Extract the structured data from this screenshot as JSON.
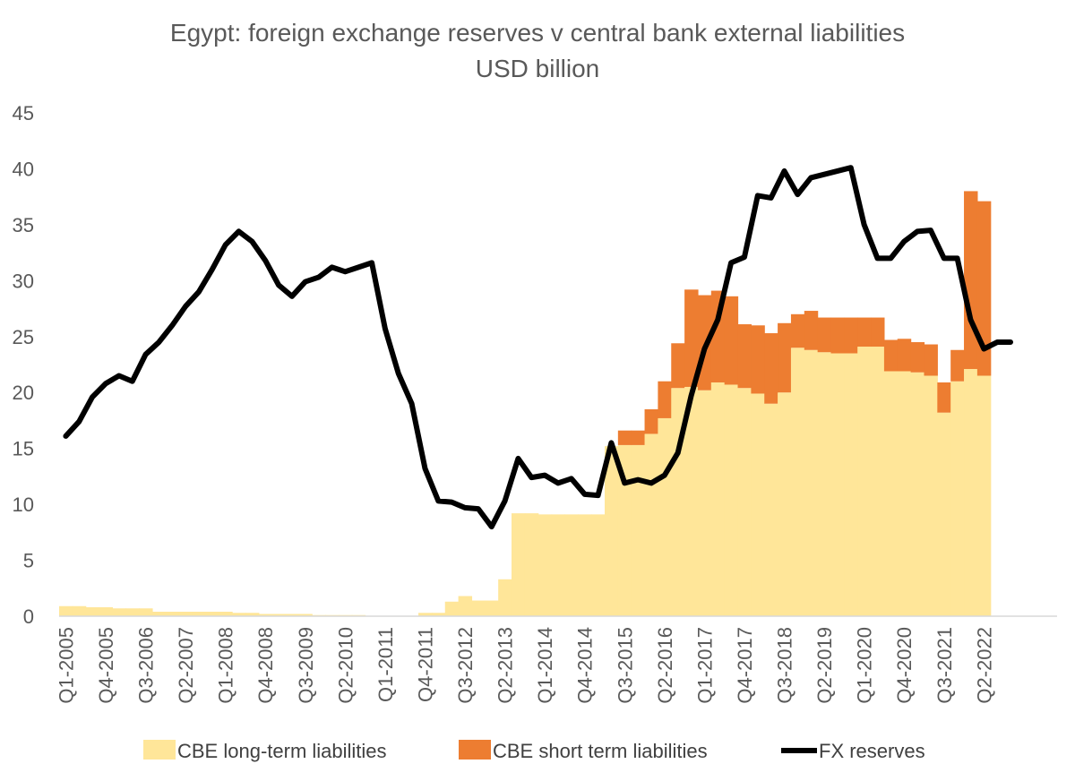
{
  "chart_data": {
    "type": "bar",
    "title": "Egypt: foreign exchange reserves v central bank external liabilities",
    "subtitle": "USD billion",
    "xlabel": "",
    "ylabel": "",
    "ylim": [
      0,
      45
    ],
    "yticks": [
      0,
      5,
      10,
      15,
      20,
      25,
      30,
      35,
      40,
      45
    ],
    "grid": false,
    "stacked": true,
    "legend_position": "bottom",
    "categories": [
      "Q1-2005",
      "Q2-2005",
      "Q3-2005",
      "Q4-2005",
      "Q1-2006",
      "Q2-2006",
      "Q3-2006",
      "Q4-2006",
      "Q1-2007",
      "Q2-2007",
      "Q3-2007",
      "Q4-2007",
      "Q1-2008",
      "Q2-2008",
      "Q3-2008",
      "Q4-2008",
      "Q1-2009",
      "Q2-2009",
      "Q3-2009",
      "Q4-2009",
      "Q1-2010",
      "Q2-2010",
      "Q3-2010",
      "Q4-2010",
      "Q1-2011",
      "Q2-2011",
      "Q3-2011",
      "Q4-2011",
      "Q1-2012",
      "Q2-2012",
      "Q3-2012",
      "Q4-2012",
      "Q1-2013",
      "Q2-2013",
      "Q3-2013",
      "Q4-2013",
      "Q1-2014",
      "Q2-2014",
      "Q3-2014",
      "Q4-2014",
      "Q1-2015",
      "Q2-2015",
      "Q3-2015",
      "Q4-2015",
      "Q1-2016",
      "Q2-2016",
      "Q3-2016",
      "Q4-2016",
      "Q1-2017",
      "Q2-2017",
      "Q3-2017",
      "Q4-2017",
      "Q1-2018",
      "Q2-2018",
      "Q3-2018",
      "Q4-2018",
      "Q1-2019",
      "Q2-2019",
      "Q3-2019",
      "Q4-2019",
      "Q1-2020",
      "Q2-2020",
      "Q3-2020",
      "Q4-2020",
      "Q1-2021",
      "Q2-2021",
      "Q3-2021",
      "Q4-2021",
      "Q1-2022",
      "Q2-2022",
      "Q3-2022",
      "Q4-2022",
      "Q1-2023",
      "Q2-2023",
      "Q3-2023"
    ],
    "tick_label_categories": [
      "Q1-2005",
      "Q4-2005",
      "Q3-2006",
      "Q2-2007",
      "Q1-2008",
      "Q4-2008",
      "Q3-2009",
      "Q2-2010",
      "Q1-2011",
      "Q4-2011",
      "Q3-2012",
      "Q2-2013",
      "Q1-2014",
      "Q4-2014",
      "Q3-2015",
      "Q2-2016",
      "Q1-2017",
      "Q4-2017",
      "Q3-2018",
      "Q2-2019",
      "Q1-2020",
      "Q4-2020",
      "Q3-2021",
      "Q2-2022"
    ],
    "series": [
      {
        "name": "CBE long-term liabilities",
        "kind": "bar",
        "color": "#FFE699",
        "values": [
          0.9,
          0.9,
          0.8,
          0.8,
          0.7,
          0.7,
          0.7,
          0.4,
          0.4,
          0.4,
          0.4,
          0.4,
          0.4,
          0.3,
          0.3,
          0.2,
          0.2,
          0.2,
          0.2,
          0.1,
          0.1,
          0.1,
          0.1,
          0,
          0,
          0,
          0,
          0.3,
          0.3,
          1.3,
          1.8,
          1.4,
          1.4,
          3.3,
          9.2,
          9.2,
          9.1,
          9.1,
          9.1,
          9.1,
          9.1,
          15.2,
          15.3,
          15.3,
          16.3,
          17.7,
          20.4,
          20.5,
          20.2,
          20.9,
          20.7,
          20.4,
          19.9,
          19.0,
          20.0,
          24.0,
          23.8,
          23.6,
          23.5,
          23.5,
          24.1,
          24.1,
          21.9,
          21.9,
          21.8,
          21.5,
          18.2,
          21.0,
          22.1,
          21.5,
          null,
          null,
          null,
          null,
          null
        ]
      },
      {
        "name": "CBE short term liabilities",
        "kind": "bar",
        "color": "#ED7D31",
        "values": [
          0,
          0,
          0,
          0,
          0,
          0,
          0,
          0,
          0,
          0,
          0,
          0,
          0,
          0,
          0,
          0,
          0,
          0,
          0,
          0,
          0,
          0,
          0,
          0,
          0,
          0,
          0,
          0,
          0,
          0,
          0,
          0,
          0,
          0,
          0,
          0,
          0,
          0,
          0,
          0,
          0,
          0,
          1.3,
          1.3,
          2.2,
          3.3,
          4.0,
          8.7,
          8.5,
          8.2,
          7.9,
          5.7,
          6.1,
          6.3,
          6.2,
          3.0,
          3.5,
          3.1,
          3.2,
          3.2,
          2.6,
          2.6,
          2.8,
          2.9,
          2.7,
          2.8,
          2.7,
          2.8,
          15.9,
          15.6,
          null,
          null,
          null,
          null,
          null
        ]
      },
      {
        "name": "FX reserves",
        "kind": "line",
        "color": "#000000",
        "values": [
          16.1,
          17.4,
          19.6,
          20.8,
          21.5,
          21.0,
          23.4,
          24.5,
          26.0,
          27.7,
          29.0,
          31.0,
          33.2,
          34.4,
          33.5,
          31.8,
          29.6,
          28.6,
          29.9,
          30.3,
          31.2,
          30.8,
          31.2,
          31.6,
          25.7,
          21.7,
          19.0,
          13.2,
          10.3,
          10.2,
          9.7,
          9.6,
          8.0,
          10.3,
          14.1,
          12.4,
          12.6,
          11.9,
          12.3,
          10.9,
          10.8,
          15.5,
          11.9,
          12.2,
          11.9,
          12.6,
          14.6,
          19.7,
          23.9,
          26.5,
          31.6,
          32.1,
          37.6,
          37.4,
          39.8,
          37.7,
          39.2,
          39.5,
          39.8,
          40.1,
          35.0,
          32.0,
          32.0,
          33.5,
          34.4,
          34.5,
          32.0,
          32.0,
          26.5,
          23.9,
          24.5,
          24.5,
          null,
          null,
          null
        ]
      }
    ]
  }
}
